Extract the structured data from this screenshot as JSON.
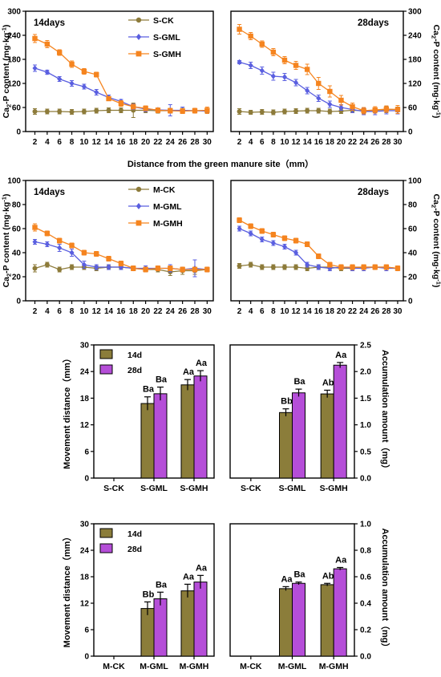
{
  "chart_data": [
    {
      "type": "line",
      "panel": "S-14d",
      "ylabel": "Ca2-P content (mg·kg-1)",
      "ylabel_side": "left",
      "annotation": "14days",
      "x": [
        2,
        4,
        6,
        8,
        10,
        12,
        14,
        16,
        18,
        20,
        22,
        24,
        26,
        28,
        30
      ],
      "ylim": [
        0,
        300
      ],
      "yticks": [
        0,
        60,
        120,
        180,
        240,
        300
      ],
      "legend": "top-right",
      "series": [
        {
          "name": "S-CK",
          "color": "#8d7b3a",
          "marker": "circle",
          "values": [
            50,
            50,
            50,
            49,
            50,
            52,
            53,
            53,
            53,
            53,
            52,
            52,
            52,
            52,
            52
          ],
          "err": [
            7,
            6,
            6,
            6,
            6,
            6,
            6,
            6,
            18,
            6,
            6,
            6,
            6,
            6,
            6
          ]
        },
        {
          "name": "S-GML",
          "color": "#5a5fe0",
          "marker": "diamond",
          "values": [
            158,
            148,
            131,
            120,
            112,
            98,
            85,
            75,
            62,
            56,
            54,
            53,
            53,
            52,
            51
          ],
          "err": [
            8,
            5,
            6,
            7,
            6,
            7,
            6,
            5,
            7,
            6,
            5,
            14,
            8,
            6,
            6
          ]
        },
        {
          "name": "S-GMH",
          "color": "#f5841f",
          "marker": "square",
          "values": [
            232,
            218,
            197,
            168,
            150,
            142,
            82,
            70,
            62,
            58,
            53,
            52,
            51,
            52,
            53
          ],
          "err": [
            10,
            9,
            7,
            8,
            7,
            6,
            5,
            7,
            6,
            6,
            6,
            6,
            6,
            6,
            8
          ]
        }
      ]
    },
    {
      "type": "line",
      "panel": "S-28d",
      "ylabel": "Ca2-P content (mg·kg-1)",
      "ylabel_side": "right",
      "annotation": "28days",
      "x": [
        2,
        4,
        6,
        8,
        10,
        12,
        14,
        16,
        18,
        20,
        22,
        24,
        26,
        28,
        30
      ],
      "ylim": [
        0,
        300
      ],
      "yticks": [
        0,
        60,
        120,
        180,
        240,
        300
      ],
      "series": [
        {
          "name": "S-CK",
          "color": "#8d7b3a",
          "marker": "circle",
          "values": [
            50,
            48,
            49,
            48,
            50,
            51,
            52,
            52,
            50,
            51,
            53,
            52,
            53,
            55,
            55
          ],
          "err": [
            7,
            5,
            6,
            6,
            6,
            6,
            6,
            6,
            6,
            6,
            6,
            6,
            6,
            8,
            6
          ]
        },
        {
          "name": "S-GML",
          "color": "#5a5fe0",
          "marker": "diamond",
          "values": [
            173,
            165,
            152,
            138,
            136,
            122,
            102,
            83,
            68,
            60,
            55,
            50,
            50,
            52,
            52
          ],
          "err": [
            4,
            8,
            9,
            10,
            9,
            8,
            8,
            8,
            8,
            7,
            8,
            8,
            8,
            8,
            8
          ]
        },
        {
          "name": "S-GMH",
          "color": "#f5841f",
          "marker": "square",
          "values": [
            255,
            238,
            218,
            198,
            178,
            165,
            155,
            120,
            100,
            78,
            62,
            52,
            54,
            56,
            55
          ],
          "err": [
            12,
            9,
            8,
            9,
            9,
            10,
            13,
            15,
            14,
            12,
            9,
            8,
            8,
            8,
            10
          ]
        }
      ]
    },
    {
      "type": "line",
      "panel": "M-14d",
      "ylabel": "Ca2-P content (mg·kg-1)",
      "ylabel_side": "left",
      "annotation": "14days",
      "x": [
        2,
        4,
        6,
        8,
        10,
        12,
        14,
        16,
        18,
        20,
        22,
        24,
        26,
        28,
        30
      ],
      "ylim": [
        0,
        100
      ],
      "yticks": [
        0,
        20,
        40,
        60,
        80,
        100
      ],
      "legend": "top-right",
      "series": [
        {
          "name": "M-CK",
          "color": "#8d7b3a",
          "marker": "circle",
          "values": [
            27,
            30,
            26,
            28,
            28,
            27,
            28,
            28,
            27,
            26,
            26,
            24,
            25,
            25,
            26
          ],
          "err": [
            3,
            2,
            2,
            2,
            2,
            2,
            2,
            2,
            2,
            2,
            2,
            3,
            3,
            3,
            2
          ]
        },
        {
          "name": "M-GML",
          "color": "#5a5fe0",
          "marker": "diamond",
          "values": [
            49,
            47,
            44,
            40,
            30,
            28,
            28,
            28,
            27,
            27,
            27,
            27,
            26,
            27,
            26
          ],
          "err": [
            2,
            2,
            3,
            3,
            3,
            2,
            2,
            2,
            2,
            2,
            2,
            3,
            2,
            7,
            2
          ]
        },
        {
          "name": "M-GMH",
          "color": "#f5841f",
          "marker": "square",
          "values": [
            61,
            56,
            50,
            46,
            40,
            39,
            35,
            31,
            27,
            26,
            27,
            27,
            26,
            26,
            26
          ],
          "err": [
            3,
            2,
            2,
            2,
            2,
            2,
            2,
            2,
            2,
            2,
            2,
            2,
            2,
            2,
            2
          ]
        }
      ]
    },
    {
      "type": "line",
      "panel": "M-28d",
      "ylabel": "Ca2-P content (mg·kg-1)",
      "ylabel_side": "right",
      "annotation": "28days",
      "x": [
        2,
        4,
        6,
        8,
        10,
        12,
        14,
        16,
        18,
        20,
        22,
        24,
        26,
        28,
        30
      ],
      "ylim": [
        0,
        100
      ],
      "yticks": [
        0,
        20,
        40,
        60,
        80,
        100
      ],
      "series": [
        {
          "name": "M-CK",
          "color": "#8d7b3a",
          "marker": "circle",
          "values": [
            29,
            30,
            28,
            28,
            28,
            28,
            27,
            28,
            28,
            27,
            27,
            28,
            28,
            28,
            27
          ],
          "err": [
            2,
            2,
            2,
            2,
            2,
            2,
            2,
            2,
            2,
            2,
            2,
            2,
            2,
            2,
            2
          ]
        },
        {
          "name": "M-GML",
          "color": "#5a5fe0",
          "marker": "diamond",
          "values": [
            60,
            56,
            51,
            48,
            45,
            40,
            30,
            28,
            27,
            28,
            27,
            27,
            28,
            27,
            27
          ],
          "err": [
            2,
            2,
            2,
            2,
            2,
            2,
            2,
            2,
            2,
            2,
            2,
            2,
            2,
            2,
            2
          ]
        },
        {
          "name": "M-GMH",
          "color": "#f5841f",
          "marker": "square",
          "values": [
            67,
            62,
            58,
            55,
            52,
            50,
            47,
            37,
            30,
            28,
            28,
            28,
            28,
            28,
            27
          ],
          "err": [
            2,
            2,
            2,
            2,
            2,
            2,
            2,
            2,
            2,
            2,
            2,
            2,
            2,
            2,
            2
          ]
        }
      ]
    },
    {
      "type": "bar",
      "panel": "S-distance",
      "categories": [
        "S-CK",
        "S-GML",
        "S-GMH"
      ],
      "ylabel": "Movement distance（mm）",
      "ylabel_side": "left",
      "ylim": [
        0,
        30
      ],
      "yticks": [
        0,
        6,
        12,
        18,
        24,
        30
      ],
      "legend": "top-left",
      "series": [
        {
          "name": "14d",
          "color": "#8b7d3a",
          "values": [
            0,
            16.8,
            21
          ],
          "err": [
            0,
            1.5,
            1.2
          ],
          "labels": [
            "",
            "Ba",
            "Aa"
          ]
        },
        {
          "name": "28d",
          "color": "#b54ed8",
          "values": [
            0,
            19,
            23
          ],
          "err": [
            0,
            1.5,
            1.2
          ],
          "labels": [
            "",
            "Ba",
            "Aa"
          ]
        }
      ]
    },
    {
      "type": "bar",
      "panel": "S-accumulation",
      "categories": [
        "S-CK",
        "S-GML",
        "S-GMH"
      ],
      "ylabel": "Accumulation amount（mg）",
      "ylabel_side": "right",
      "ylim": [
        0,
        2.5
      ],
      "yticks": [
        0,
        0.5,
        1.0,
        1.5,
        2.0,
        2.5
      ],
      "series": [
        {
          "name": "14d",
          "color": "#8b7d3a",
          "values": [
            0,
            1.23,
            1.58
          ],
          "err": [
            0,
            0.07,
            0.07
          ],
          "labels": [
            "",
            "Bb",
            "Ab"
          ]
        },
        {
          "name": "28d",
          "color": "#b54ed8",
          "values": [
            0,
            1.6,
            2.12
          ],
          "err": [
            0,
            0.07,
            0.05
          ],
          "labels": [
            "",
            "Ba",
            "Aa"
          ]
        }
      ]
    },
    {
      "type": "bar",
      "panel": "M-distance",
      "categories": [
        "M-CK",
        "M-GML",
        "M-GMH"
      ],
      "ylabel": "Movement distance（mm）",
      "ylabel_side": "left",
      "ylim": [
        0,
        30
      ],
      "yticks": [
        0,
        6,
        12,
        18,
        24,
        30
      ],
      "legend": "top-left",
      "series": [
        {
          "name": "14d",
          "color": "#8b7d3a",
          "values": [
            0,
            10.8,
            14.8
          ],
          "err": [
            0,
            1.5,
            1.5
          ],
          "labels": [
            "",
            "Bb",
            "Aa"
          ]
        },
        {
          "name": "28d",
          "color": "#b54ed8",
          "values": [
            0,
            13,
            16.8
          ],
          "err": [
            0,
            1.5,
            1.5
          ],
          "labels": [
            "",
            "Ba",
            "Aa"
          ]
        }
      ]
    },
    {
      "type": "bar",
      "panel": "M-accumulation",
      "categories": [
        "M-CK",
        "M-GML",
        "M-GMH"
      ],
      "ylabel": "Accumulation amount（mg）",
      "ylabel_side": "right",
      "ylim": [
        0,
        1.0
      ],
      "yticks": [
        0,
        0.2,
        0.4,
        0.6,
        0.8,
        1.0
      ],
      "series": [
        {
          "name": "14d",
          "color": "#8b7d3a",
          "values": [
            0,
            0.51,
            0.54
          ],
          "err": [
            0,
            0.015,
            0.01
          ],
          "labels": [
            "",
            "Aa",
            "Ab"
          ]
        },
        {
          "name": "28d",
          "color": "#b54ed8",
          "values": [
            0,
            0.55,
            0.66
          ],
          "err": [
            0,
            0.01,
            0.01
          ],
          "labels": [
            "",
            "Ba",
            "Aa"
          ]
        }
      ]
    }
  ],
  "shared_xlabel": "Distance from the green manure site（mm）"
}
